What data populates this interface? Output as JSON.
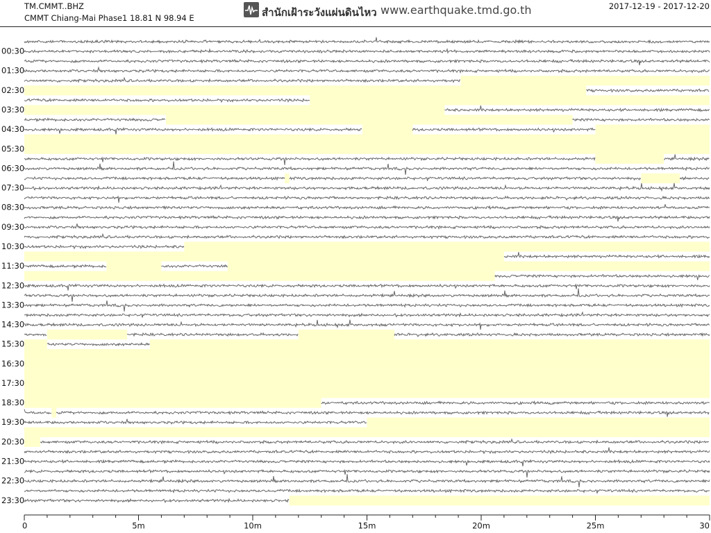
{
  "header": {
    "station": "TM.CMMT..BHZ",
    "location": "CMMT Chiang-Mai Phase1  18.81 N 98.94 E",
    "agency": "สำนักเฝ้าระวังแผ่นดินไหว",
    "url": "www.earthquake.tmd.go.th",
    "dates": "2017-12-19 - 2017-12-20"
  },
  "chart_data": {
    "type": "helicorder",
    "y_labels": [
      "00:30",
      "01:30",
      "02:30",
      "03:30",
      "04:30",
      "05:30",
      "06:30",
      "07:30",
      "08:30",
      "09:30",
      "10:30",
      "11:30",
      "12:30",
      "13:30",
      "14:30",
      "15:30",
      "16:30",
      "17:30",
      "18:30",
      "19:30",
      "20:30",
      "21:30",
      "22:30",
      "23:30"
    ],
    "xlim": [
      0,
      30
    ],
    "xticks": [
      0,
      {
        "value": 5,
        "label": "5m"
      },
      {
        "value": 10,
        "label": "10m"
      },
      {
        "value": 15,
        "label": "15m"
      },
      {
        "value": 20,
        "label": "20m"
      },
      {
        "value": 25,
        "label": "25m"
      },
      30
    ]
  }
}
